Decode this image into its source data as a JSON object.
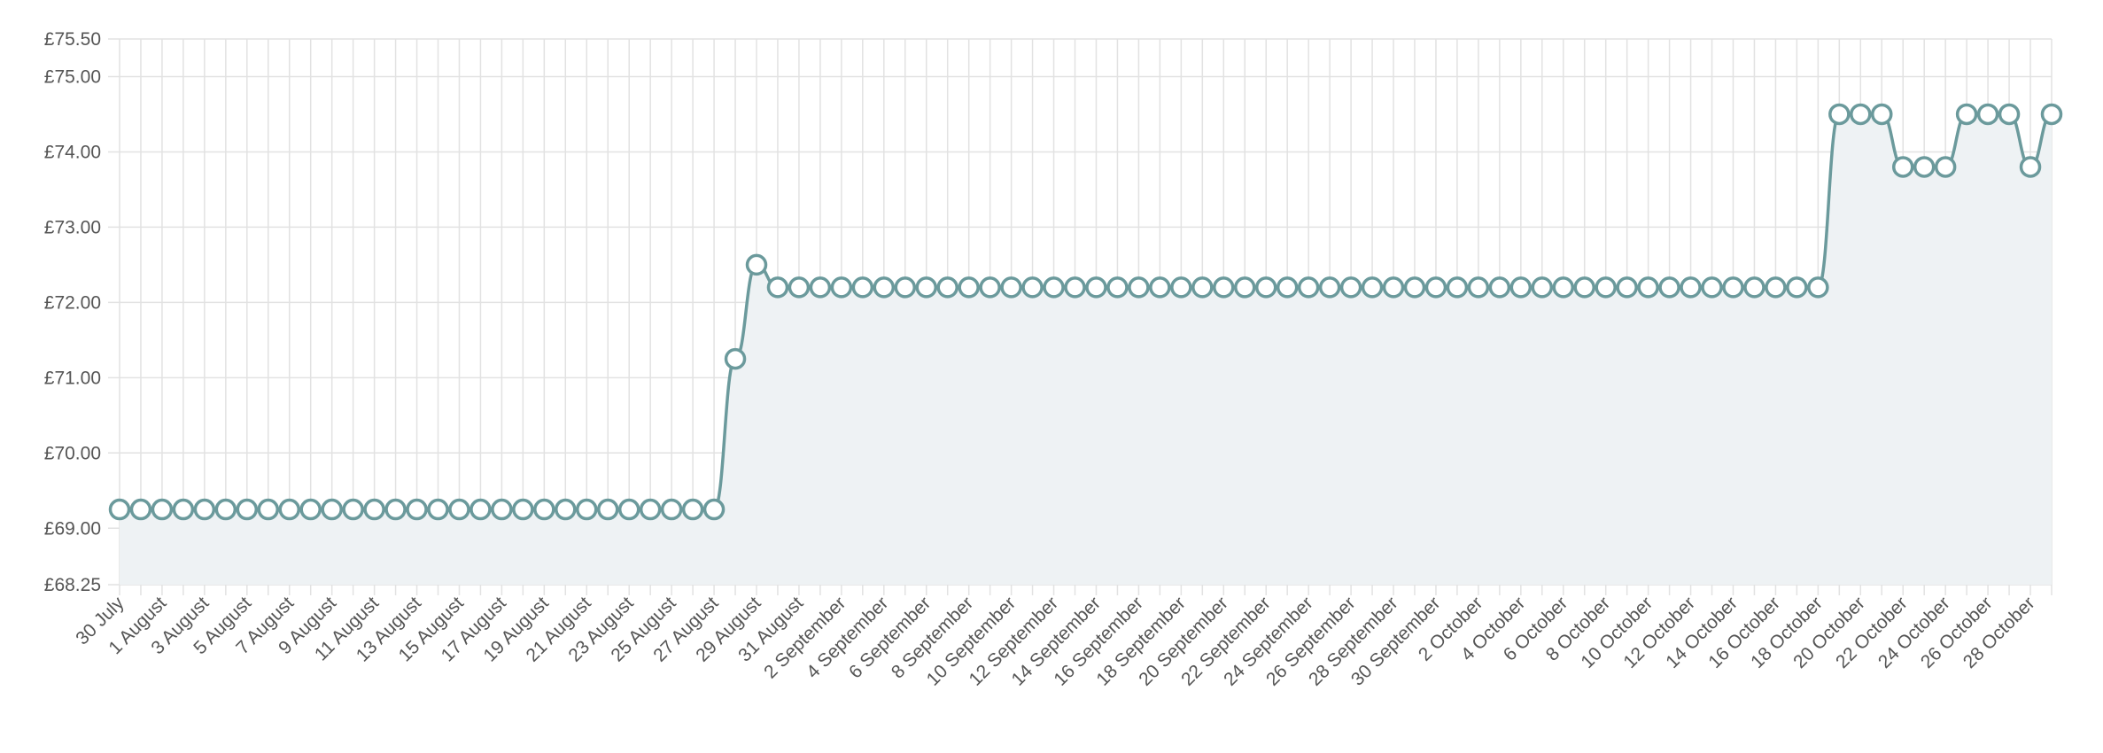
{
  "chart_data": {
    "type": "line",
    "categories": [
      "30 July",
      null,
      "1 August",
      null,
      "3 August",
      null,
      "5 August",
      null,
      "7 August",
      null,
      "9 August",
      null,
      "11 August",
      null,
      "13 August",
      null,
      "15 August",
      null,
      "17 August",
      null,
      "19 August",
      null,
      "21 August",
      null,
      "23 August",
      null,
      "25 August",
      null,
      "27 August",
      null,
      "29 August",
      null,
      "31 August",
      null,
      "2 September",
      null,
      "4 September",
      null,
      "6 September",
      null,
      "8 September",
      null,
      "10 September",
      null,
      "12 September",
      null,
      "14 September",
      null,
      "16 September",
      null,
      "18 September",
      null,
      "20 September",
      null,
      "22 September",
      null,
      "24 September",
      null,
      "26 September",
      null,
      "28 September",
      null,
      "30 September",
      null,
      "2 October",
      null,
      "4 October",
      null,
      "6 October",
      null,
      "8 October",
      null,
      "10 October",
      null,
      "12 October",
      null,
      "14 October",
      null,
      "16 October",
      null,
      "18 October",
      null,
      "20 October",
      null,
      "22 October",
      null,
      "24 October",
      null,
      "26 October",
      null,
      "28 October",
      null
    ],
    "values": [
      69.25,
      69.25,
      69.25,
      69.25,
      69.25,
      69.25,
      69.25,
      69.25,
      69.25,
      69.25,
      69.25,
      69.25,
      69.25,
      69.25,
      69.25,
      69.25,
      69.25,
      69.25,
      69.25,
      69.25,
      69.25,
      69.25,
      69.25,
      69.25,
      69.25,
      69.25,
      69.25,
      69.25,
      69.25,
      71.25,
      72.5,
      72.2,
      72.2,
      72.2,
      72.2,
      72.2,
      72.2,
      72.2,
      72.2,
      72.2,
      72.2,
      72.2,
      72.2,
      72.2,
      72.2,
      72.2,
      72.2,
      72.2,
      72.2,
      72.2,
      72.2,
      72.2,
      72.2,
      72.2,
      72.2,
      72.2,
      72.2,
      72.2,
      72.2,
      72.2,
      72.2,
      72.2,
      72.2,
      72.2,
      72.2,
      72.2,
      72.2,
      72.2,
      72.2,
      72.2,
      72.2,
      72.2,
      72.2,
      72.2,
      72.2,
      72.2,
      72.2,
      72.2,
      72.2,
      72.2,
      72.2,
      74.5,
      74.5,
      74.5,
      73.8,
      73.8,
      73.8,
      74.5,
      74.5,
      74.5,
      73.8,
      74.5
    ],
    "color": "#6b9a9c",
    "fill_color": "#eef2f4",
    "ylim": [
      68.25,
      75.5
    ],
    "yticks": [
      {
        "value": 68.25,
        "label": "£68.25"
      },
      {
        "value": 69,
        "label": "£69.00"
      },
      {
        "value": 70,
        "label": "£70.00"
      },
      {
        "value": 71,
        "label": "£71.00"
      },
      {
        "value": 72,
        "label": "£72.00"
      },
      {
        "value": 73,
        "label": "£73.00"
      },
      {
        "value": 74,
        "label": "£74.00"
      },
      {
        "value": 75,
        "label": "£75.00"
      },
      {
        "value": 75.5,
        "label": "£75.50"
      }
    ],
    "grid": true
  }
}
